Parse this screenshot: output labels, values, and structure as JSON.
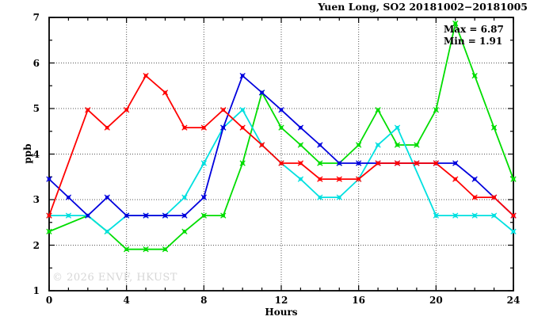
{
  "title": "Yuen Long, SO2 20181002−20181005",
  "annotation": {
    "max_label": "Max = 6.87",
    "min_label": "Min = 1.91"
  },
  "watermark": "© 2026 ENVF, HKUST",
  "colors": {
    "red": "#ff0000",
    "green": "#00dd00",
    "blue": "#0000dd",
    "cyan": "#00e0e0"
  },
  "chart_data": {
    "type": "line",
    "title": "Yuen Long, SO2 20181002−20181005",
    "xlabel": "Hours",
    "ylabel": "ppb",
    "xlim": [
      0,
      24
    ],
    "ylim": [
      1,
      7
    ],
    "x_major_ticks": [
      0,
      4,
      8,
      12,
      16,
      20,
      24
    ],
    "x_minor_step": 1,
    "y_major_ticks": [
      1,
      2,
      3,
      4,
      5,
      6,
      7
    ],
    "y_minor_step": 0.5,
    "grid": {
      "x": [
        4,
        8,
        12,
        16,
        20
      ],
      "y": [
        2,
        3,
        4,
        5,
        6
      ]
    },
    "legend_position": "none",
    "max": 6.87,
    "min": 1.91,
    "x": [
      0,
      1,
      2,
      3,
      4,
      5,
      6,
      7,
      8,
      9,
      10,
      11,
      12,
      13,
      14,
      15,
      16,
      17,
      18,
      19,
      20,
      21,
      22,
      23,
      24
    ],
    "series": [
      {
        "name": "series-green",
        "color": "#00dd00",
        "values": [
          2.3,
          null,
          2.65,
          2.3,
          1.91,
          1.91,
          1.91,
          2.3,
          2.65,
          2.65,
          3.8,
          5.35,
          4.58,
          4.2,
          3.8,
          3.8,
          4.2,
          4.97,
          4.2,
          4.2,
          4.97,
          6.87,
          5.72,
          4.58,
          3.45
        ]
      },
      {
        "name": "series-cyan",
        "color": "#00e0e0",
        "values": [
          2.65,
          2.65,
          2.65,
          2.3,
          2.65,
          2.65,
          2.65,
          3.05,
          3.8,
          4.58,
          4.97,
          4.2,
          3.8,
          3.45,
          3.05,
          3.05,
          3.45,
          4.2,
          4.58,
          null,
          2.65,
          2.65,
          2.65,
          2.65,
          2.3
        ]
      },
      {
        "name": "series-blue",
        "color": "#0000dd",
        "values": [
          3.45,
          3.05,
          2.65,
          3.05,
          2.65,
          2.65,
          2.65,
          2.65,
          3.05,
          4.58,
          5.72,
          5.35,
          4.97,
          4.58,
          4.2,
          3.8,
          3.8,
          3.8,
          3.8,
          3.8,
          3.8,
          3.8,
          3.45,
          3.05,
          2.65
        ]
      },
      {
        "name": "series-red",
        "color": "#ff0000",
        "values": [
          2.65,
          null,
          4.97,
          4.58,
          4.97,
          5.72,
          5.35,
          4.58,
          4.58,
          4.97,
          4.58,
          4.2,
          3.8,
          3.8,
          3.45,
          3.45,
          3.45,
          3.8,
          3.8,
          3.8,
          3.8,
          3.45,
          3.05,
          3.05,
          2.65
        ]
      }
    ]
  }
}
